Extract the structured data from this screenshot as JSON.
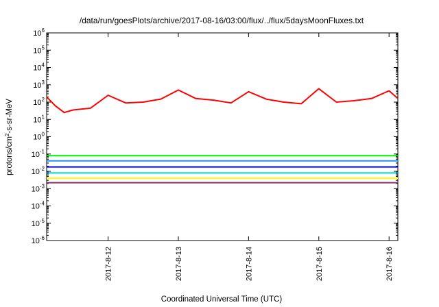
{
  "chart_data": {
    "type": "line",
    "title": "/data/run/goesPlots/archive/2017-08-16/03:00/flux/../flux/5daysMoonFluxes.txt",
    "xlabel": "Coordinated Universal Time (UTC)",
    "ylabel": "protons/cm2-s-sr-MeV",
    "y_scale": "log",
    "ylim_exponents": [
      -6,
      6
    ],
    "y_tick_exponents": [
      -6,
      -5,
      -4,
      -3,
      -2,
      -1,
      0,
      1,
      2,
      3,
      4,
      5,
      6
    ],
    "xlim": [
      "2017-08-11 03:00",
      "2017-08-16 03:00"
    ],
    "x_ticks": [
      "2017-8-12",
      "2017-8-13",
      "2017-8-14",
      "2017-8-15",
      "2017-8-16"
    ],
    "x_tick_dates": [
      "2017-08-12 00:00",
      "2017-08-13 00:00",
      "2017-08-14 00:00",
      "2017-08-15 00:00",
      "2017-08-16 00:00"
    ],
    "grid": false,
    "legend": "none",
    "series": [
      {
        "color": "#ff0000",
        "x": [
          "2017-08-11 03:00",
          "2017-08-11 06:00",
          "2017-08-11 09:00",
          "2017-08-11 12:00",
          "2017-08-11 18:00",
          "2017-08-12 00:00",
          "2017-08-12 06:00",
          "2017-08-12 12:00",
          "2017-08-12 18:00",
          "2017-08-13 00:00",
          "2017-08-13 06:00",
          "2017-08-13 12:00",
          "2017-08-13 18:00",
          "2017-08-14 00:00",
          "2017-08-14 06:00",
          "2017-08-14 12:00",
          "2017-08-14 18:00",
          "2017-08-15 00:00",
          "2017-08-15 06:00",
          "2017-08-15 12:00",
          "2017-08-15 18:00",
          "2017-08-16 00:00",
          "2017-08-16 03:00"
        ],
        "y": [
          200,
          60,
          25,
          35,
          45,
          250,
          90,
          100,
          150,
          500,
          160,
          130,
          90,
          400,
          150,
          100,
          80,
          600,
          100,
          120,
          160,
          450,
          160
        ]
      },
      {
        "color": "#00ee00",
        "x": [
          "2017-08-11 03:00",
          "2017-08-16 03:00"
        ],
        "y": [
          0.08,
          0.08
        ]
      },
      {
        "color": "#1e90ff",
        "x": [
          "2017-08-11 03:00",
          "2017-08-16 03:00"
        ],
        "y": [
          0.04,
          0.04
        ]
      },
      {
        "color": "#0000ff",
        "x": [
          "2017-08-11 03:00",
          "2017-08-16 03:00"
        ],
        "y": [
          0.018,
          0.018
        ]
      },
      {
        "color": "#00ced1",
        "x": [
          "2017-08-11 03:00",
          "2017-08-16 03:00"
        ],
        "y": [
          0.008,
          0.008
        ]
      },
      {
        "color": "#ffff00",
        "x": [
          "2017-08-11 03:00",
          "2017-08-16 03:00"
        ],
        "y": [
          0.004,
          0.004
        ]
      },
      {
        "color": "#8b2d6b",
        "x": [
          "2017-08-11 03:00",
          "2017-08-16 03:00"
        ],
        "y": [
          0.0022,
          0.0022
        ]
      }
    ]
  }
}
